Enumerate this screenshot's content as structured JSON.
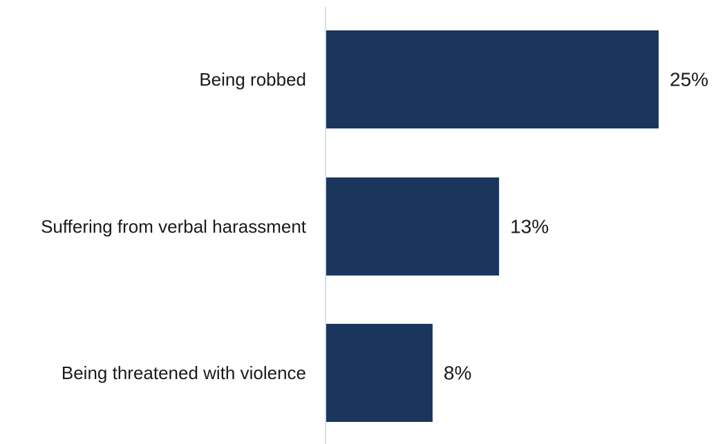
{
  "chart_data": {
    "type": "bar",
    "orientation": "horizontal",
    "categories": [
      "Being robbed",
      "Suffering from verbal harassment",
      "Being threatened with violence"
    ],
    "values": [
      25,
      13,
      8
    ],
    "value_labels": [
      "25%",
      "13%",
      "8%"
    ],
    "unit": "%",
    "title": "",
    "xlabel": "",
    "ylabel": "",
    "grid": false,
    "legend": "none",
    "colors": {
      "bar": "#1b365d",
      "axis": "#cfe3f1",
      "text": "#1a1a1a"
    }
  }
}
